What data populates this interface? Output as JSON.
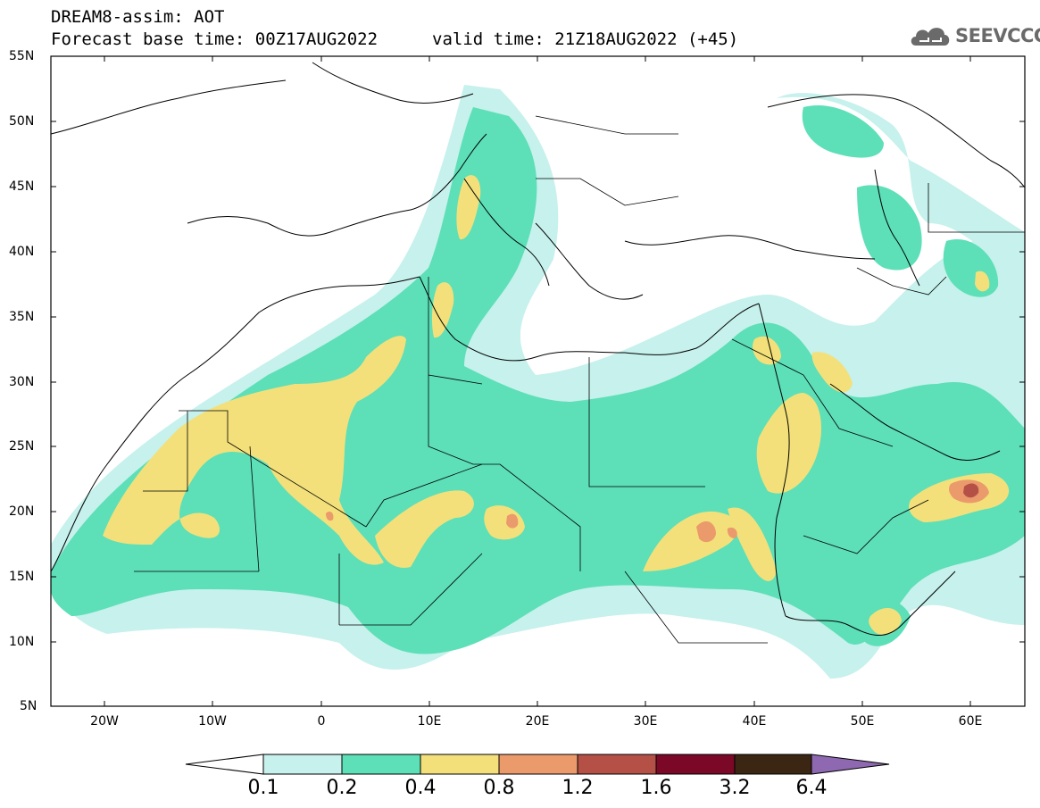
{
  "header": {
    "title_line1": "DREAM8-assim: AOT",
    "base_time": "Forecast base time: 00Z17AUG2022",
    "valid_time": "valid time: 21Z18AUG2022 (+45)",
    "logo_text": "SEEVCCC",
    "logo_icon": "cloud-icon"
  },
  "map": {
    "latitude_labels": [
      "55N",
      "50N",
      "45N",
      "40N",
      "35N",
      "30N",
      "25N",
      "20N",
      "15N",
      "10N",
      "5N"
    ],
    "longitude_labels": [
      "20W",
      "10W",
      "0",
      "10E",
      "20E",
      "30E",
      "40E",
      "50E",
      "60E"
    ],
    "lon_range": [
      -25,
      65
    ],
    "lat_range": [
      5,
      55
    ]
  },
  "colorbar": {
    "labels": [
      "0.1",
      "0.2",
      "0.4",
      "0.8",
      "1.2",
      "1.6",
      "3.2",
      "6.4"
    ],
    "colors": [
      "#ffffff",
      "#c6f1ec",
      "#5ddfb8",
      "#f3e07a",
      "#eb9a6c",
      "#b55047",
      "#7a0826",
      "#3a2612",
      "#8e68b0"
    ]
  }
}
